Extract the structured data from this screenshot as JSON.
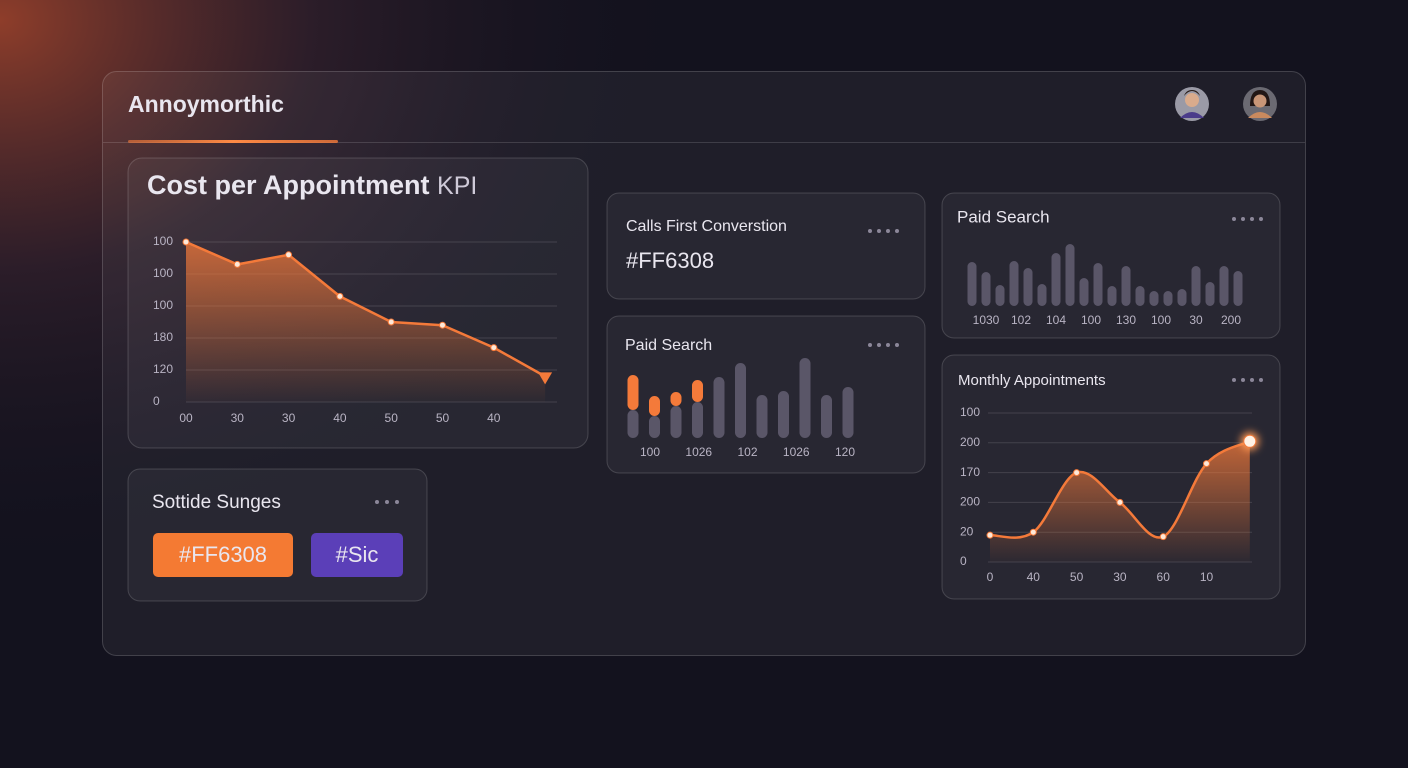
{
  "header": {
    "title": "Annoymorthic"
  },
  "cost_chart": {
    "type": "line",
    "title": "Cost per Appointment",
    "title_suffix": "KPI",
    "categories": [
      "00",
      "30",
      "30",
      "40",
      "50",
      "50",
      "40",
      null
    ],
    "values": [
      5,
      4.3,
      4.6,
      3.3,
      2.5,
      2.4,
      1.7,
      0.8
    ],
    "ylim": [
      0,
      5
    ],
    "yticks": [
      {
        "value": 5,
        "label": "100"
      },
      {
        "value": 4,
        "label": "100"
      },
      {
        "value": 3,
        "label": "100"
      },
      {
        "value": 2,
        "label": "180"
      },
      {
        "value": 1,
        "label": "120"
      },
      0
    ],
    "color": "#f47a3a",
    "grid": true
  },
  "calls_card": {
    "title": "Calls First Converstion",
    "value": "#FF6308"
  },
  "paid_search_mid": {
    "type": "bar",
    "title": "Paid Search",
    "xlabels": [
      "100",
      "1026",
      "102",
      "1026",
      "120"
    ],
    "series": [
      {
        "color": "#5a5668",
        "values": [
          28,
          22,
          32,
          36,
          61,
          75,
          43,
          47,
          80,
          43,
          51
        ]
      },
      {
        "color": "#f47a3a",
        "values": [
          35,
          20,
          14,
          22,
          0,
          0,
          0,
          0,
          0,
          0,
          0
        ]
      }
    ],
    "ylim": [
      0,
      80
    ]
  },
  "paid_search_right": {
    "type": "bar",
    "title": "Paid Search",
    "xlabels": [
      "1030",
      "102",
      "104",
      "100",
      "130",
      "100",
      "30",
      "200"
    ],
    "values": [
      44,
      34,
      21,
      45,
      38,
      22,
      53,
      62,
      28,
      43,
      20,
      40,
      20,
      15,
      15,
      17,
      40,
      24,
      40,
      35
    ],
    "color": "#5a5668",
    "ylim": [
      0,
      62
    ]
  },
  "monthly_chart": {
    "type": "line",
    "title": "Monthly Appointments",
    "categories": [
      "0",
      "40",
      "50",
      "30",
      "60",
      "10",
      null
    ],
    "values": [
      0.9,
      1.0,
      3.0,
      2.0,
      0.85,
      3.3,
      4.05
    ],
    "ylim": [
      0,
      5
    ],
    "yticks": [
      {
        "value": 5,
        "label": "100"
      },
      {
        "value": 4,
        "label": "200"
      },
      {
        "value": 3,
        "label": "170"
      },
      {
        "value": 2,
        "label": "200"
      },
      {
        "value": 1,
        "label": "20"
      },
      0
    ],
    "color": "#f47a3a",
    "grid": true
  },
  "sottide_card": {
    "title": "Sottide Sunges",
    "buttons": [
      "#FF6308",
      "#Sic"
    ]
  }
}
